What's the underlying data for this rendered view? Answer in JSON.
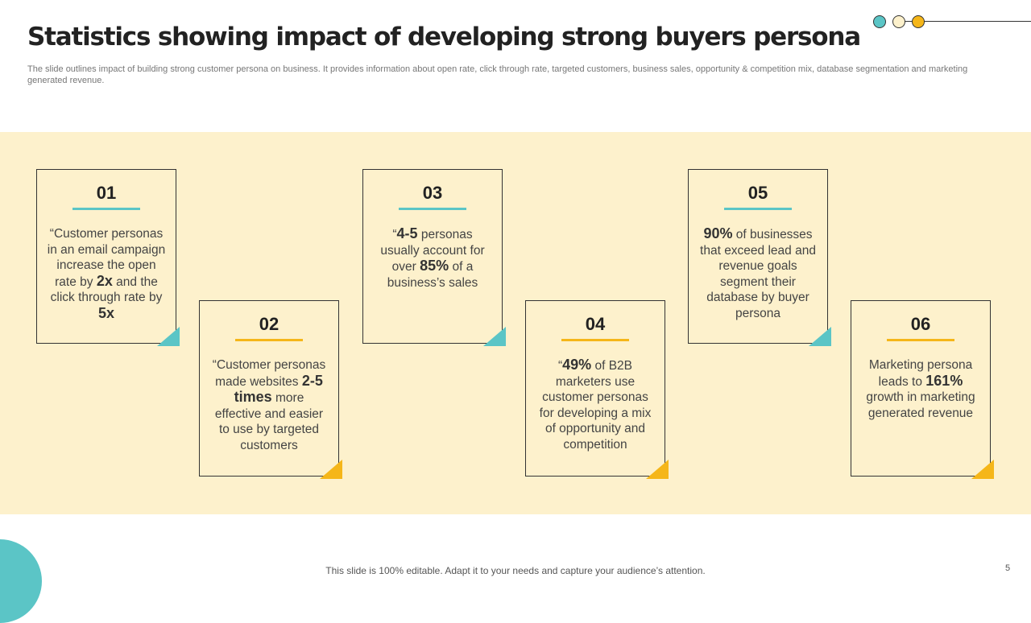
{
  "title": "Statistics showing impact of developing strong buyers persona",
  "subtitle": "The slide outlines impact of building strong customer persona on business. It provides information about open rate, click through rate, targeted customers, business sales, opportunity & competition mix, database segmentation and marketing generated revenue.",
  "colors": {
    "teal": "#5bc5c6",
    "gold": "#f5b619",
    "cream": "#fdf1cc"
  },
  "cards": [
    {
      "number": "01",
      "text_parts": [
        {
          "t": "“Customer personas in an email campaign increase the open rate by ",
          "b": false
        },
        {
          "t": "2x",
          "b": true
        },
        {
          "t": " and the click through rate by ",
          "b": false
        },
        {
          "t": "5x",
          "b": true
        }
      ]
    },
    {
      "number": "02",
      "text_parts": [
        {
          "t": "“Customer personas made websites ",
          "b": false
        },
        {
          "t": "2-5 times",
          "b": true
        },
        {
          "t": " more effective and easier to use by targeted customers",
          "b": false
        }
      ]
    },
    {
      "number": "03",
      "text_parts": [
        {
          "t": "“",
          "b": false
        },
        {
          "t": "4-5",
          "b": true
        },
        {
          "t": " personas usually account for over ",
          "b": false
        },
        {
          "t": "85%",
          "b": true
        },
        {
          "t": " of a business’s sales",
          "b": false
        }
      ]
    },
    {
      "number": "04",
      "text_parts": [
        {
          "t": "“",
          "b": false
        },
        {
          "t": "49%",
          "b": true
        },
        {
          "t": " of B2B marketers use customer personas for developing a mix of opportunity and competition",
          "b": false
        }
      ]
    },
    {
      "number": "05",
      "text_parts": [
        {
          "t": "90%",
          "b": true
        },
        {
          "t": " of businesses that exceed lead and revenue goals segment their database by buyer persona",
          "b": false
        }
      ]
    },
    {
      "number": "06",
      "text_parts": [
        {
          "t": "Marketing persona leads to ",
          "b": false
        },
        {
          "t": "161%",
          "b": true
        },
        {
          "t": " growth in marketing generated revenue",
          "b": false
        }
      ]
    }
  ],
  "footer": "This slide is 100% editable. Adapt it to your needs and capture your audience’s attention.",
  "page_number": "5"
}
